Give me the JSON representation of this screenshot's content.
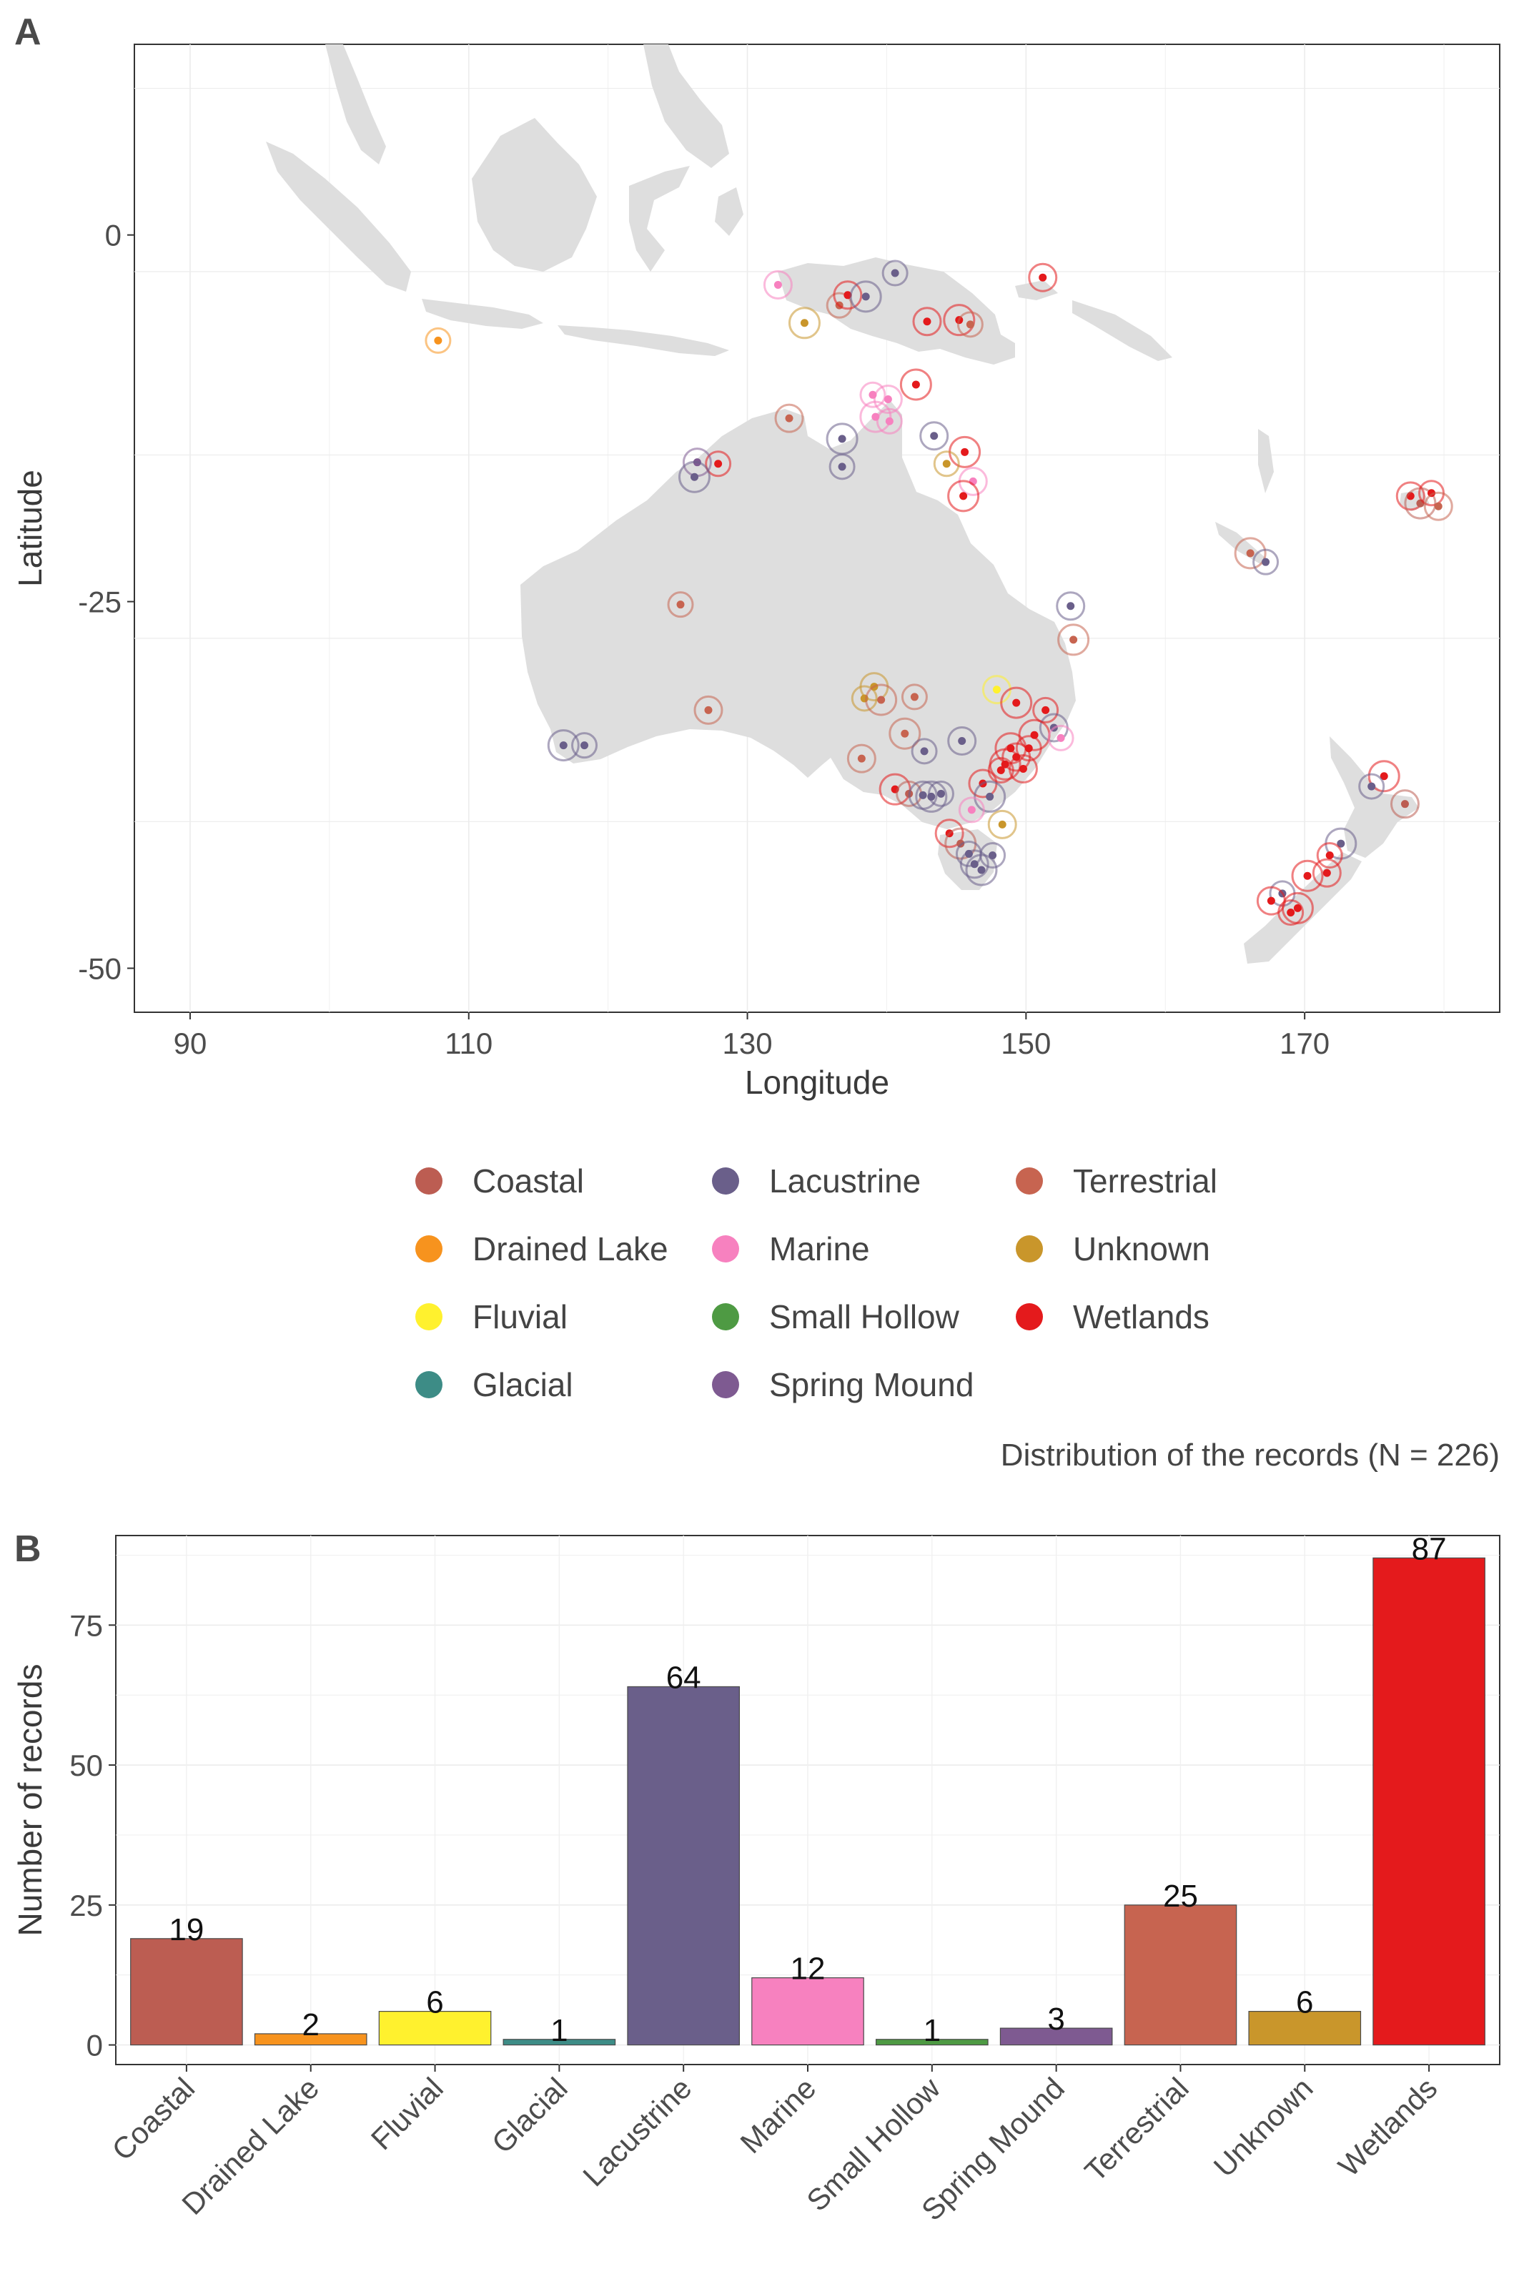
{
  "panels": {
    "a_tag": "A",
    "b_tag": "B"
  },
  "map": {
    "xlabel": "Longitude",
    "ylabel": "Latitude",
    "xlim": [
      86,
      184
    ],
    "ylim": [
      -53,
      13
    ],
    "xticks": [
      90,
      110,
      130,
      150,
      170
    ],
    "yticks": [
      0,
      -25,
      -50
    ]
  },
  "caption": "Distribution of the records (N = 226)",
  "legend": [
    {
      "label": "Coastal",
      "color": "#BC5D52"
    },
    {
      "label": "Drained Lake",
      "color": "#F7931E"
    },
    {
      "label": "Fluvial",
      "color": "#FFF12E"
    },
    {
      "label": "Glacial",
      "color": "#3D8C86"
    },
    {
      "label": "Lacustrine",
      "color": "#6A5F8A"
    },
    {
      "label": "Marine",
      "color": "#F781BF"
    },
    {
      "label": "Small Hollow",
      "color": "#4E9A43"
    },
    {
      "label": "Spring Mound",
      "color": "#7E5A91"
    },
    {
      "label": "Terrestrial",
      "color": "#C76450"
    },
    {
      "label": "Unknown",
      "color": "#C9962B"
    },
    {
      "label": "Wetlands",
      "color": "#E41A1C"
    }
  ],
  "chart_data": [
    {
      "type": "scatter",
      "xlabel": "Longitude",
      "ylabel": "Latitude",
      "xlim": [
        86,
        184
      ],
      "ylim": [
        -53,
        13
      ],
      "grid": true,
      "legend_placement": "bottom",
      "points": [
        {
          "lon": 107.8,
          "lat": -7.2,
          "cat": "Drained Lake"
        },
        {
          "lon": 132.2,
          "lat": -3.4,
          "cat": "Marine"
        },
        {
          "lon": 134.1,
          "lat": -6.0,
          "cat": "Unknown"
        },
        {
          "lon": 136.6,
          "lat": -4.8,
          "cat": "Terrestrial"
        },
        {
          "lon": 137.2,
          "lat": -4.1,
          "cat": "Wetlands"
        },
        {
          "lon": 138.5,
          "lat": -4.2,
          "cat": "Lacustrine"
        },
        {
          "lon": 140.6,
          "lat": -2.6,
          "cat": "Lacustrine"
        },
        {
          "lon": 142.9,
          "lat": -5.9,
          "cat": "Wetlands"
        },
        {
          "lon": 145.2,
          "lat": -5.8,
          "cat": "Wetlands"
        },
        {
          "lon": 146.0,
          "lat": -6.1,
          "cat": "Terrestrial"
        },
        {
          "lon": 151.2,
          "lat": -2.9,
          "cat": "Wetlands"
        },
        {
          "lon": 142.1,
          "lat": -10.2,
          "cat": "Wetlands"
        },
        {
          "lon": 139.0,
          "lat": -10.9,
          "cat": "Marine"
        },
        {
          "lon": 140.1,
          "lat": -11.2,
          "cat": "Marine"
        },
        {
          "lon": 139.2,
          "lat": -12.4,
          "cat": "Marine"
        },
        {
          "lon": 140.2,
          "lat": -12.7,
          "cat": "Marine"
        },
        {
          "lon": 133.0,
          "lat": -12.5,
          "cat": "Terrestrial"
        },
        {
          "lon": 136.8,
          "lat": -13.9,
          "cat": "Lacustrine"
        },
        {
          "lon": 136.8,
          "lat": -15.8,
          "cat": "Lacustrine"
        },
        {
          "lon": 143.4,
          "lat": -13.7,
          "cat": "Lacustrine"
        },
        {
          "lon": 145.6,
          "lat": -14.8,
          "cat": "Wetlands"
        },
        {
          "lon": 144.3,
          "lat": -15.6,
          "cat": "Unknown"
        },
        {
          "lon": 146.2,
          "lat": -16.8,
          "cat": "Marine"
        },
        {
          "lon": 145.5,
          "lat": -17.8,
          "cat": "Wetlands"
        },
        {
          "lon": 127.9,
          "lat": -15.6,
          "cat": "Wetlands"
        },
        {
          "lon": 126.4,
          "lat": -15.5,
          "cat": "Spring Mound"
        },
        {
          "lon": 126.2,
          "lat": -16.5,
          "cat": "Lacustrine"
        },
        {
          "lon": 125.2,
          "lat": -25.2,
          "cat": "Terrestrial"
        },
        {
          "lon": 127.2,
          "lat": -32.4,
          "cat": "Terrestrial"
        },
        {
          "lon": 116.8,
          "lat": -34.8,
          "cat": "Lacustrine"
        },
        {
          "lon": 118.3,
          "lat": -34.8,
          "cat": "Lacustrine"
        },
        {
          "lon": 153.2,
          "lat": -25.3,
          "cat": "Lacustrine"
        },
        {
          "lon": 153.4,
          "lat": -27.6,
          "cat": "Terrestrial"
        },
        {
          "lon": 138.4,
          "lat": -31.6,
          "cat": "Unknown"
        },
        {
          "lon": 139.1,
          "lat": -30.8,
          "cat": "Unknown"
        },
        {
          "lon": 139.6,
          "lat": -31.7,
          "cat": "Terrestrial"
        },
        {
          "lon": 142.0,
          "lat": -31.5,
          "cat": "Terrestrial"
        },
        {
          "lon": 147.9,
          "lat": -31.0,
          "cat": "Fluvial"
        },
        {
          "lon": 149.3,
          "lat": -31.9,
          "cat": "Wetlands"
        },
        {
          "lon": 151.4,
          "lat": -32.4,
          "cat": "Wetlands"
        },
        {
          "lon": 152.0,
          "lat": -33.6,
          "cat": "Lacustrine"
        },
        {
          "lon": 150.6,
          "lat": -34.1,
          "cat": "Wetlands"
        },
        {
          "lon": 150.2,
          "lat": -35.0,
          "cat": "Wetlands"
        },
        {
          "lon": 149.3,
          "lat": -35.6,
          "cat": "Wetlands"
        },
        {
          "lon": 148.5,
          "lat": -36.1,
          "cat": "Wetlands"
        },
        {
          "lon": 148.2,
          "lat": -36.5,
          "cat": "Wetlands"
        },
        {
          "lon": 149.8,
          "lat": -36.4,
          "cat": "Wetlands"
        },
        {
          "lon": 148.9,
          "lat": -35.0,
          "cat": "Wetlands"
        },
        {
          "lon": 152.5,
          "lat": -34.3,
          "cat": "Marine"
        },
        {
          "lon": 146.9,
          "lat": -37.4,
          "cat": "Wetlands"
        },
        {
          "lon": 147.4,
          "lat": -38.3,
          "cat": "Lacustrine"
        },
        {
          "lon": 146.1,
          "lat": -39.2,
          "cat": "Marine"
        },
        {
          "lon": 145.4,
          "lat": -34.5,
          "cat": "Lacustrine"
        },
        {
          "lon": 141.3,
          "lat": -34.0,
          "cat": "Terrestrial"
        },
        {
          "lon": 142.7,
          "lat": -35.2,
          "cat": "Lacustrine"
        },
        {
          "lon": 138.2,
          "lat": -35.7,
          "cat": "Terrestrial"
        },
        {
          "lon": 140.6,
          "lat": -37.8,
          "cat": "Wetlands"
        },
        {
          "lon": 141.6,
          "lat": -38.1,
          "cat": "Coastal"
        },
        {
          "lon": 142.6,
          "lat": -38.2,
          "cat": "Lacustrine"
        },
        {
          "lon": 143.2,
          "lat": -38.3,
          "cat": "Lacustrine"
        },
        {
          "lon": 143.9,
          "lat": -38.1,
          "cat": "Lacustrine"
        },
        {
          "lon": 144.5,
          "lat": -40.8,
          "cat": "Wetlands"
        },
        {
          "lon": 145.3,
          "lat": -41.5,
          "cat": "Coastal"
        },
        {
          "lon": 145.9,
          "lat": -42.2,
          "cat": "Lacustrine"
        },
        {
          "lon": 146.3,
          "lat": -42.9,
          "cat": "Lacustrine"
        },
        {
          "lon": 146.8,
          "lat": -43.3,
          "cat": "Lacustrine"
        },
        {
          "lon": 147.6,
          "lat": -42.3,
          "cat": "Lacustrine"
        },
        {
          "lon": 148.3,
          "lat": -40.2,
          "cat": "Unknown"
        },
        {
          "lon": 166.1,
          "lat": -21.7,
          "cat": "Terrestrial"
        },
        {
          "lon": 167.2,
          "lat": -22.3,
          "cat": "Lacustrine"
        },
        {
          "lon": 177.6,
          "lat": -17.8,
          "cat": "Wetlands"
        },
        {
          "lon": 178.3,
          "lat": -18.3,
          "cat": "Coastal"
        },
        {
          "lon": 179.1,
          "lat": -17.6,
          "cat": "Wetlands"
        },
        {
          "lon": 179.6,
          "lat": -18.5,
          "cat": "Terrestrial"
        },
        {
          "lon": 175.7,
          "lat": -36.9,
          "cat": "Wetlands"
        },
        {
          "lon": 174.8,
          "lat": -37.6,
          "cat": "Lacustrine"
        },
        {
          "lon": 177.2,
          "lat": -38.8,
          "cat": "Coastal"
        },
        {
          "lon": 172.6,
          "lat": -41.5,
          "cat": "Lacustrine"
        },
        {
          "lon": 171.8,
          "lat": -42.3,
          "cat": "Wetlands"
        },
        {
          "lon": 171.6,
          "lat": -43.5,
          "cat": "Wetlands"
        },
        {
          "lon": 170.2,
          "lat": -43.7,
          "cat": "Wetlands"
        },
        {
          "lon": 168.4,
          "lat": -44.9,
          "cat": "Lacustrine"
        },
        {
          "lon": 167.6,
          "lat": -45.4,
          "cat": "Wetlands"
        },
        {
          "lon": 169.5,
          "lat": -45.9,
          "cat": "Wetlands"
        },
        {
          "lon": 169.0,
          "lat": -46.2,
          "cat": "Wetlands"
        }
      ]
    },
    {
      "type": "bar",
      "categories": [
        "Coastal",
        "Drained Lake",
        "Fluvial",
        "Glacial",
        "Lacustrine",
        "Marine",
        "Small Hollow",
        "Spring Mound",
        "Terrestrial",
        "Unknown",
        "Wetlands"
      ],
      "values": [
        19,
        2,
        6,
        1,
        64,
        12,
        1,
        3,
        25,
        6,
        87
      ],
      "value_labels": [
        "19",
        "2",
        "6",
        "1",
        "64",
        "12",
        "1",
        "3",
        "25",
        "6",
        "87"
      ],
      "colors": [
        "#BC5D52",
        "#F7931E",
        "#FFF12E",
        "#3D8C86",
        "#6A5F8A",
        "#F781BF",
        "#4E9A43",
        "#7E5A91",
        "#C76450",
        "#C9962B",
        "#E41A1C"
      ],
      "xlabel": "",
      "ylabel": "Number of records",
      "ylim": [
        -3.5,
        91
      ],
      "yticks": [
        0,
        25,
        50,
        75
      ],
      "grid": true
    }
  ]
}
